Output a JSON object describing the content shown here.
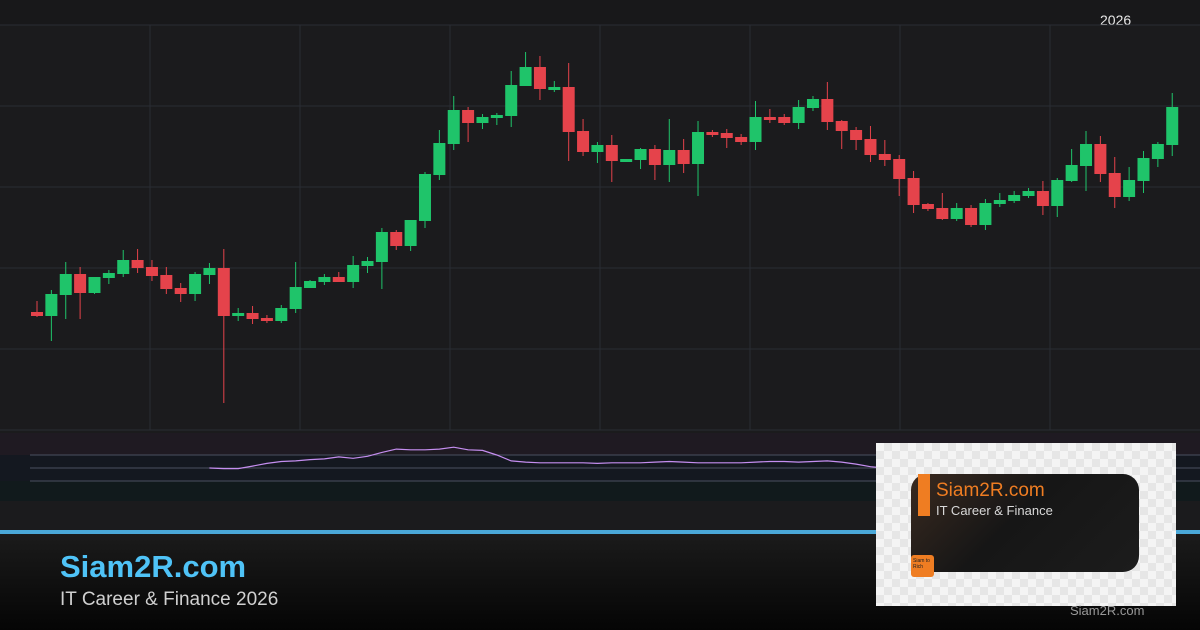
{
  "header": {
    "year_label": "2026"
  },
  "footer": {
    "title": "Siam2R.com",
    "subtitle": "IT Career & Finance 2026",
    "watermark": "Siam2R.com"
  },
  "logo": {
    "name": "Siam2R.com",
    "tagline": "IT Career & Finance",
    "badge": "Siam to Rich",
    "accent": "#ef7d22"
  },
  "colors": {
    "up": "#1fc46a",
    "down": "#e5434b",
    "indicator": "#c58ef0",
    "accent_line": "#4aa8d8",
    "title": "#4fc3f7"
  },
  "chart_data": {
    "type": "candlestick",
    "title": "",
    "xlabel": "",
    "ylabel": "",
    "grid": true,
    "ylim": [
      20,
      425
    ],
    "ohlc": [
      [
        138,
        149,
        133,
        134
      ],
      [
        134,
        160,
        109,
        156
      ],
      [
        155,
        188,
        131,
        176
      ],
      [
        176,
        183,
        131,
        157
      ],
      [
        157,
        173,
        156,
        173
      ],
      [
        172,
        180,
        166,
        177
      ],
      [
        176,
        200,
        173,
        190
      ],
      [
        190,
        201,
        177,
        182
      ],
      [
        183,
        190,
        169,
        174
      ],
      [
        175,
        183,
        156,
        161
      ],
      [
        162,
        167,
        148,
        156
      ],
      [
        156,
        178,
        149,
        176
      ],
      [
        175,
        187,
        166,
        182
      ],
      [
        182,
        201,
        47,
        134
      ],
      [
        134,
        142,
        129,
        137
      ],
      [
        137,
        144,
        126,
        131
      ],
      [
        132,
        135,
        127,
        129
      ],
      [
        129,
        145,
        127,
        142
      ],
      [
        141,
        188,
        137,
        163
      ],
      [
        162,
        170,
        162,
        169
      ],
      [
        168,
        176,
        165,
        173
      ],
      [
        173,
        178,
        168,
        168
      ],
      [
        168,
        194,
        162,
        185
      ],
      [
        184,
        193,
        177,
        189
      ],
      [
        188,
        222,
        161,
        218
      ],
      [
        218,
        220,
        200,
        204
      ],
      [
        204,
        230,
        199,
        230
      ],
      [
        229,
        278,
        222,
        276
      ],
      [
        275,
        320,
        270,
        307
      ],
      [
        306,
        354,
        300,
        340
      ],
      [
        340,
        343,
        308,
        327
      ],
      [
        327,
        336,
        321,
        333
      ],
      [
        332,
        337,
        325,
        335
      ],
      [
        334,
        379,
        323,
        365
      ],
      [
        364,
        398,
        364,
        383
      ],
      [
        383,
        394,
        350,
        361
      ],
      [
        360,
        369,
        358,
        363
      ],
      [
        363,
        387,
        289,
        318
      ],
      [
        319,
        331,
        294,
        298
      ],
      [
        298,
        308,
        287,
        305
      ],
      [
        305,
        315,
        268,
        289
      ],
      [
        288,
        291,
        288,
        291
      ],
      [
        290,
        302,
        281,
        301
      ],
      [
        301,
        305,
        270,
        285
      ],
      [
        285,
        331,
        268,
        300
      ],
      [
        300,
        311,
        277,
        286
      ],
      [
        286,
        329,
        254,
        318
      ],
      [
        318,
        320,
        313,
        315
      ],
      [
        317,
        321,
        302,
        312
      ],
      [
        313,
        316,
        305,
        308
      ],
      [
        308,
        349,
        300,
        333
      ],
      [
        333,
        341,
        327,
        330
      ],
      [
        333,
        336,
        325,
        327
      ],
      [
        327,
        350,
        321,
        343
      ],
      [
        342,
        354,
        339,
        351
      ],
      [
        351,
        368,
        320,
        328
      ],
      [
        329,
        330,
        301,
        319
      ],
      [
        320,
        323,
        300,
        310
      ],
      [
        311,
        324,
        288,
        295
      ],
      [
        296,
        310,
        284,
        290
      ],
      [
        291,
        295,
        254,
        271
      ],
      [
        272,
        279,
        237,
        245
      ],
      [
        246,
        247,
        239,
        241
      ],
      [
        242,
        257,
        230,
        231
      ],
      [
        231,
        247,
        229,
        242
      ],
      [
        242,
        245,
        223,
        225
      ],
      [
        225,
        251,
        220,
        247
      ],
      [
        246,
        257,
        243,
        250
      ],
      [
        249,
        259,
        247,
        255
      ],
      [
        254,
        262,
        252,
        259
      ],
      [
        259,
        269,
        235,
        244
      ],
      [
        244,
        272,
        233,
        270
      ],
      [
        269,
        301,
        268,
        285
      ],
      [
        284,
        319,
        259,
        306
      ],
      [
        306,
        314,
        268,
        276
      ],
      [
        277,
        293,
        242,
        253
      ],
      [
        253,
        283,
        249,
        270
      ],
      [
        269,
        299,
        257,
        292
      ],
      [
        291,
        308,
        283,
        306
      ],
      [
        305,
        357,
        294,
        343
      ]
    ],
    "indicator": {
      "levels": [
        70,
        50,
        30
      ],
      "start_index": 12,
      "values": [
        50,
        49,
        49,
        53,
        57,
        60,
        61,
        63,
        64,
        67,
        65,
        68,
        74,
        79,
        78,
        78,
        79,
        82,
        78,
        77,
        70,
        61,
        59,
        58,
        58,
        58,
        58,
        57,
        58,
        58,
        58,
        59,
        60,
        59,
        58,
        58,
        58,
        58,
        59,
        60,
        60,
        59,
        60,
        61,
        59,
        56,
        52,
        50
      ]
    }
  }
}
